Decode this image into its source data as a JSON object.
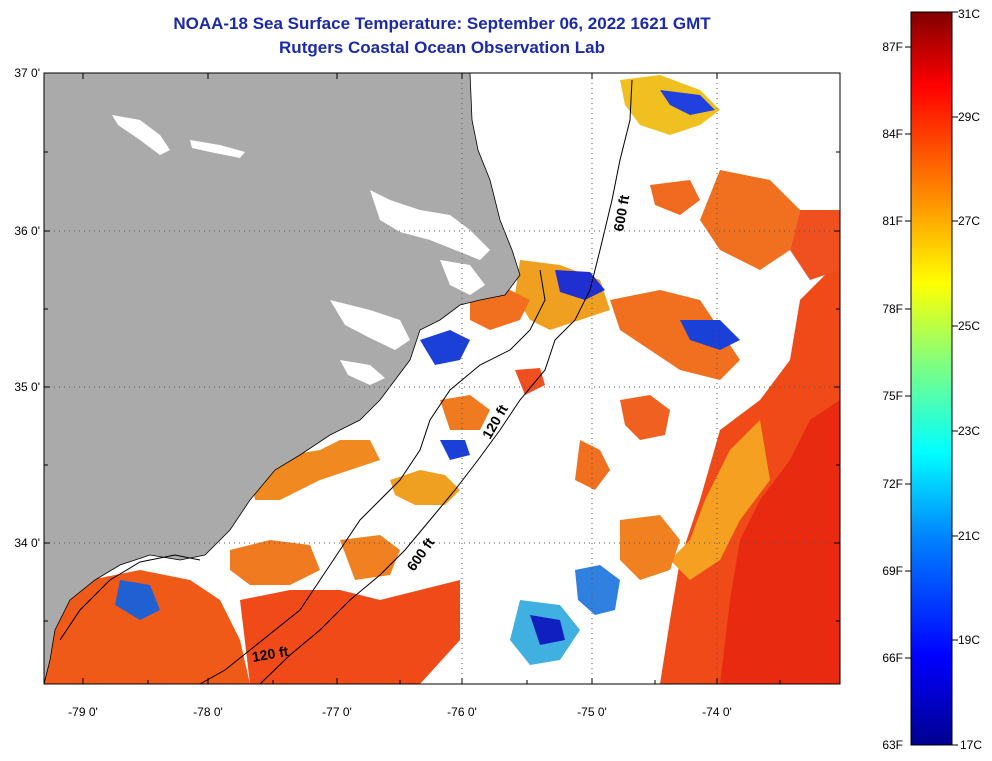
{
  "title": {
    "line1": "NOAA-18 Sea Surface Temperature:  September 06, 2022 1621 GMT",
    "line2": "Rutgers Coastal Ocean Observation Lab"
  },
  "axes": {
    "lat_labels": [
      "37 0'",
      "36 0'",
      "35 0'",
      "34 0'"
    ],
    "lon_labels": [
      "-79 0'",
      "-78 0'",
      "-77 0'",
      "-76 0'",
      "-75 0'",
      "-74 0'"
    ]
  },
  "isobaths": [
    "600 ft",
    "120 ft",
    "600 ft",
    "120 ft"
  ],
  "colorbar": {
    "fahrenheit": [
      "87F",
      "84F",
      "81F",
      "78F",
      "75F",
      "72F",
      "69F",
      "66F",
      "63F"
    ],
    "celsius": [
      "31C",
      "29C",
      "27C",
      "25C",
      "23C",
      "21C",
      "19C",
      "17C"
    ],
    "range_c": [
      17,
      31
    ],
    "colors": [
      "#00008f",
      "#0000ff",
      "#0080ff",
      "#00ffff",
      "#80ff80",
      "#ffff00",
      "#ff8000",
      "#ff0000",
      "#800000"
    ]
  },
  "colors": {
    "land": "#aaaaaa",
    "title": "#1c2aa8",
    "warm_water": "#f04a18",
    "mid_water": "#f08c20",
    "cool_water": "#1a40d8"
  }
}
